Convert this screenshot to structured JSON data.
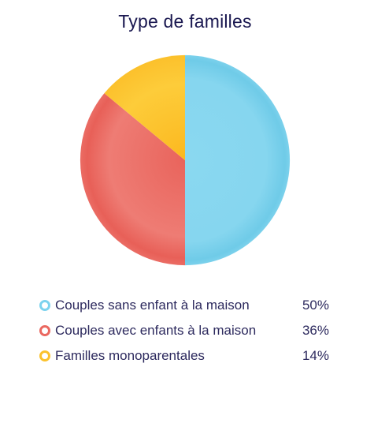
{
  "chart_data": {
    "type": "pie",
    "title": "Type de familles",
    "slices": [
      {
        "label": "Couples sans enfant à la maison",
        "value": 50,
        "display": "50%",
        "color": "#7dd3ee"
      },
      {
        "label": "Couples avec enfants à la maison",
        "value": 36,
        "display": "36%",
        "color": "#ea6860"
      },
      {
        "label": "Familles monoparentales",
        "value": 14,
        "display": "14%",
        "color": "#fbc22c"
      }
    ],
    "legend_position": "bottom"
  }
}
